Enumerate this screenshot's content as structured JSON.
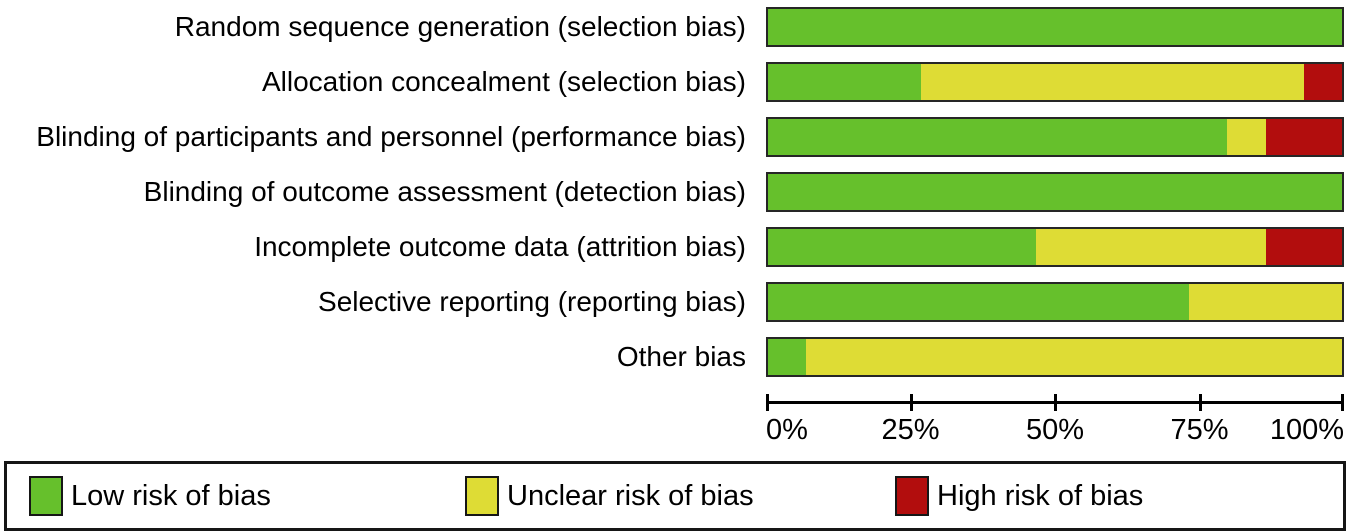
{
  "chart_data": {
    "type": "bar",
    "orientation": "horizontal_stacked",
    "title": "",
    "xlabel": "",
    "ylabel": "",
    "xlim": [
      0,
      100
    ],
    "x_tick_labels": [
      "0%",
      "25%",
      "50%",
      "75%",
      "100%"
    ],
    "x_tick_values": [
      0,
      25,
      50,
      75,
      100
    ],
    "grid": false,
    "legend_position": "bottom",
    "categories": [
      "Random sequence generation (selection bias)",
      "Allocation concealment (selection bias)",
      "Blinding of participants and personnel (performance bias)",
      "Blinding of outcome assessment (detection bias)",
      "Incomplete outcome data (attrition bias)",
      "Selective reporting (reporting bias)",
      "Other bias"
    ],
    "series": [
      {
        "key": "low",
        "name": "Low risk of bias",
        "color": "#66c02c",
        "values": [
          100,
          26.7,
          80,
          100,
          46.7,
          73.3,
          6.7
        ]
      },
      {
        "key": "unclear",
        "name": "Unclear risk of bias",
        "color": "#dedc35",
        "values": [
          0,
          66.7,
          6.7,
          0,
          40,
          26.7,
          93.3
        ]
      },
      {
        "key": "high",
        "name": "High risk of bias",
        "color": "#b20d0d",
        "values": [
          0,
          6.7,
          13.3,
          0,
          13.3,
          0,
          0
        ]
      }
    ]
  },
  "legend": {
    "items": [
      {
        "key": "low",
        "label": "Low risk of bias",
        "color": "#66c02c"
      },
      {
        "key": "unclear",
        "label": "Unclear risk of bias",
        "color": "#dedc35"
      },
      {
        "key": "high",
        "label": "High risk of bias",
        "color": "#b20d0d"
      }
    ]
  },
  "colors": {
    "low_risk": "#66c02c",
    "unclear_risk": "#dedc35",
    "high_risk": "#b20d0d",
    "bar_border": "#262626",
    "axis": "#000000",
    "legend_border": "#161616",
    "background": "#ffffff"
  }
}
